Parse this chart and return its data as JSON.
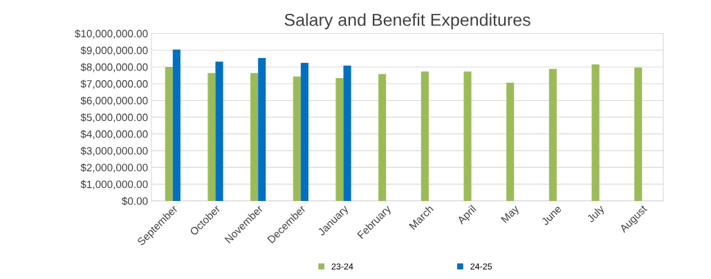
{
  "chart_data": {
    "type": "bar",
    "title": "Salary and Benefit Expenditures",
    "categories": [
      "September",
      "October",
      "November",
      "December",
      "January",
      "February",
      "March",
      "April",
      "May",
      "June",
      "July",
      "August"
    ],
    "series": [
      {
        "name": "23-24",
        "color": "#9bbb59",
        "values": [
          8000000,
          7640000,
          7640000,
          7430000,
          7340000,
          7580000,
          7730000,
          7730000,
          7060000,
          7880000,
          8150000,
          7970000
        ]
      },
      {
        "name": "24-25",
        "color": "#0070c0",
        "values": [
          9040000,
          8320000,
          8530000,
          8250000,
          8080000,
          null,
          null,
          null,
          null,
          null,
          null,
          null
        ]
      }
    ],
    "ylim": [
      0,
      10000000
    ],
    "yticks": [
      {
        "value": 0,
        "label": "$0.00"
      },
      {
        "value": 1000000,
        "label": "$1,000,000.00"
      },
      {
        "value": 2000000,
        "label": "$2,000,000.00"
      },
      {
        "value": 3000000,
        "label": "$3,000,000.00"
      },
      {
        "value": 4000000,
        "label": "$4,000,000.00"
      },
      {
        "value": 5000000,
        "label": "$5,000,000.00"
      },
      {
        "value": 6000000,
        "label": "$6,000,000.00"
      },
      {
        "value": 7000000,
        "label": "$7,000,000.00"
      },
      {
        "value": 8000000,
        "label": "$8,000,000.00"
      },
      {
        "value": 9000000,
        "label": "$9,000,000.00"
      },
      {
        "value": 10000000,
        "label": "$10,000,000.00"
      }
    ],
    "grid": "y",
    "legend": "bottom"
  }
}
